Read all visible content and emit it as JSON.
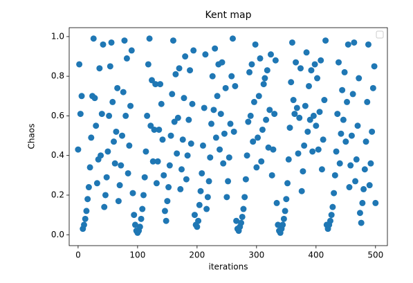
{
  "chart_data": {
    "type": "scatter",
    "title": "Kent map",
    "x_label": "iterations",
    "y_label": "Chaos",
    "color": "#1f77b4",
    "x": [
      0,
      2,
      4,
      6,
      8,
      10,
      12,
      14,
      16,
      18,
      20,
      22,
      24,
      26,
      28,
      30,
      32,
      34,
      36,
      38,
      40,
      42,
      44,
      46,
      48,
      50,
      52,
      54,
      56,
      58,
      60,
      62,
      64,
      66,
      68,
      70,
      72,
      74,
      76,
      78,
      80,
      82,
      84,
      86,
      88,
      90,
      92,
      94,
      96,
      98,
      100,
      102,
      104,
      106,
      108,
      110,
      112,
      114,
      116,
      118,
      120,
      122,
      124,
      126,
      128,
      130,
      132,
      134,
      136,
      138,
      140,
      142,
      144,
      146,
      148,
      150,
      152,
      154,
      156,
      158,
      160,
      162,
      164,
      166,
      168,
      170,
      172,
      174,
      176,
      178,
      180,
      182,
      184,
      186,
      188,
      190,
      192,
      194,
      196,
      198,
      200,
      202,
      204,
      206,
      208,
      210,
      212,
      214,
      216,
      218,
      220,
      222,
      224,
      226,
      228,
      230,
      232,
      234,
      236,
      238,
      240,
      242,
      244,
      246,
      248,
      250,
      252,
      254,
      256,
      258,
      260,
      262,
      264,
      266,
      268,
      270,
      272,
      274,
      276,
      278,
      280,
      282,
      284,
      286,
      288,
      290,
      292,
      294,
      296,
      298,
      300,
      302,
      304,
      306,
      308,
      310,
      312,
      314,
      316,
      318,
      320,
      322,
      324,
      326,
      328,
      330,
      332,
      334,
      336,
      338,
      340,
      342,
      344,
      346,
      348,
      350,
      352,
      354,
      356,
      358,
      360,
      362,
      364,
      366,
      368,
      370,
      372,
      374,
      376,
      378,
      380,
      382,
      384,
      386,
      388,
      390,
      392,
      394,
      396,
      398,
      400,
      402,
      404,
      406,
      408,
      410,
      412,
      414,
      416,
      418,
      420,
      422,
      424,
      426,
      428,
      430,
      432,
      434,
      436,
      438,
      440,
      442,
      444,
      446,
      448,
      450,
      452,
      454,
      456,
      458,
      460,
      462,
      464,
      466,
      468,
      470,
      472,
      474,
      476,
      478,
      480,
      482,
      484,
      486,
      488,
      490,
      492,
      494,
      496,
      498,
      500
    ],
    "values": [
      0.43,
      0.86,
      0.61,
      0.7,
      0.03,
      0.05,
      0.08,
      0.12,
      0.18,
      0.24,
      0.34,
      0.49,
      0.7,
      0.99,
      0.69,
      0.55,
      0.26,
      0.38,
      0.84,
      0.4,
      0.61,
      0.96,
      0.14,
      0.2,
      0.29,
      0.42,
      0.6,
      0.85,
      0.97,
      0.67,
      0.47,
      0.36,
      0.52,
      0.74,
      0.17,
      0.25,
      0.35,
      0.5,
      0.72,
      0.98,
      0.6,
      0.89,
      0.31,
      0.45,
      0.65,
      0.93,
      0.21,
      0.1,
      0.05,
      0.02,
      0.01,
      0.02,
      0.04,
      0.08,
      0.13,
      0.2,
      0.29,
      0.42,
      0.6,
      0.86,
      0.99,
      0.55,
      0.78,
      0.37,
      0.53,
      0.76,
      0.26,
      0.37,
      0.53,
      0.76,
      0.66,
      0.48,
      0.3,
      0.12,
      0.07,
      0.17,
      0.24,
      0.35,
      0.5,
      0.71,
      0.98,
      0.57,
      0.81,
      0.41,
      0.59,
      0.84,
      0.23,
      0.33,
      0.48,
      0.69,
      0.9,
      0.28,
      0.4,
      0.58,
      0.83,
      0.46,
      0.66,
      0.93,
      0.1,
      0.05,
      0.04,
      0.07,
      0.15,
      0.22,
      0.31,
      0.45,
      0.64,
      0.91,
      0.13,
      0.19,
      0.27,
      0.39,
      0.56,
      0.8,
      0.63,
      0.94,
      0.49,
      0.7,
      0.86,
      0.43,
      0.61,
      0.87,
      0.36,
      0.51,
      0.74,
      0.19,
      0.27,
      0.39,
      0.56,
      0.8,
      0.99,
      0.52,
      0.75,
      0.07,
      0.03,
      0.02,
      0.04,
      0.06,
      0.09,
      0.13,
      0.19,
      0.28,
      0.4,
      0.57,
      0.82,
      0.6,
      0.86,
      0.47,
      0.67,
      0.96,
      0.34,
      0.49,
      0.7,
      0.89,
      0.37,
      0.53,
      0.76,
      0.79,
      0.58,
      0.83,
      0.44,
      0.63,
      0.91,
      0.3,
      0.43,
      0.61,
      0.88,
      0.16,
      0.05,
      0.02,
      0.01,
      0.03,
      0.05,
      0.08,
      0.12,
      0.18,
      0.26,
      0.38,
      0.54,
      0.77,
      0.97,
      0.68,
      0.61,
      0.87,
      0.64,
      0.41,
      0.59,
      0.84,
      0.22,
      0.32,
      0.45,
      0.65,
      0.92,
      0.52,
      0.75,
      0.58,
      0.83,
      0.42,
      0.6,
      0.86,
      0.55,
      0.79,
      0.43,
      0.62,
      0.88,
      0.33,
      0.48,
      0.68,
      0.98,
      0.05,
      0.03,
      0.05,
      0.07,
      0.1,
      0.14,
      0.21,
      0.3,
      0.42,
      0.61,
      0.87,
      0.36,
      0.51,
      0.73,
      0.58,
      0.82,
      0.47,
      0.67,
      0.96,
      0.24,
      0.35,
      0.5,
      0.71,
      0.97,
      0.27,
      0.38,
      0.55,
      0.79,
      0.11,
      0.06,
      0.16,
      0.23,
      0.33,
      0.47,
      0.67,
      0.96,
      0.25,
      0.36,
      0.52,
      0.74,
      0.85,
      0.16
    ],
    "xlim": [
      -15,
      520
    ],
    "xticks": [
      0,
      100,
      200,
      300,
      400,
      500
    ],
    "ylim": [
      -0.055,
      1.045
    ],
    "yticks": [
      {
        "value": 0,
        "label": "0.0"
      },
      0.2,
      0.4,
      0.6,
      0.8,
      {
        "value": 1,
        "label": "1.0"
      }
    ],
    "grid": false
  }
}
